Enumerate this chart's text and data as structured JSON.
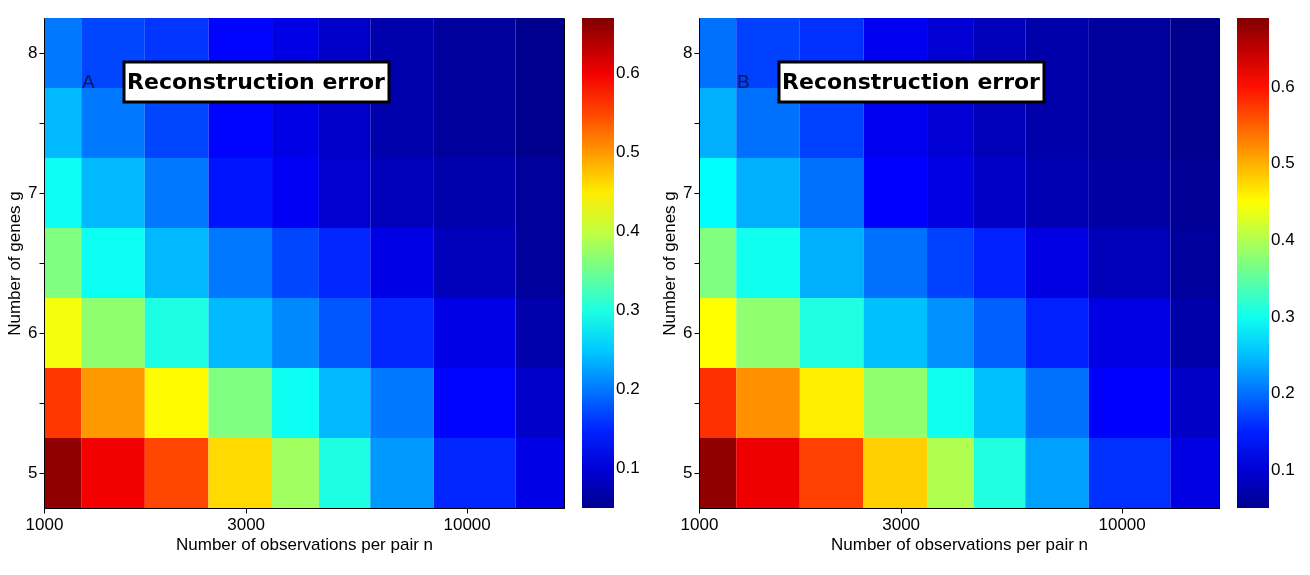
{
  "chart_data": [
    {
      "type": "heatmap",
      "title": "Reconstruction error",
      "annotations": [
        "A"
      ],
      "xlabel": "Number of observations per pair n",
      "ylabel": "Number of genes g",
      "log": "x",
      "x": [
        1000,
        1500,
        2000,
        3000,
        4000,
        5000,
        7000,
        10000,
        17000
      ],
      "xlim": [
        1000,
        17000
      ],
      "xticks": [
        1000,
        3000,
        10000
      ],
      "y_categories": [
        "8",
        null,
        "7",
        null,
        "6",
        null,
        "5"
      ],
      "clim": [
        0.05,
        0.67
      ],
      "cticks": [
        0.1,
        0.2,
        0.3,
        0.4,
        0.5,
        0.6
      ],
      "cells": [
        [
          0.2,
          0.17,
          0.16,
          0.13,
          0.11,
          0.09,
          0.07,
          0.06,
          0.05
        ],
        [
          0.24,
          0.2,
          0.17,
          0.13,
          0.11,
          0.09,
          0.07,
          0.06,
          0.05
        ],
        [
          0.29,
          0.24,
          0.2,
          0.14,
          0.12,
          0.095,
          0.08,
          0.07,
          0.06
        ],
        [
          0.36,
          0.29,
          0.24,
          0.2,
          0.17,
          0.15,
          0.11,
          0.08,
          0.06
        ],
        [
          0.43,
          0.37,
          0.3,
          0.24,
          0.21,
          0.18,
          0.15,
          0.11,
          0.07
        ],
        [
          0.56,
          0.5,
          0.44,
          0.36,
          0.29,
          0.24,
          0.2,
          0.13,
          0.09
        ],
        [
          0.66,
          0.6,
          0.55,
          0.46,
          0.38,
          0.3,
          0.22,
          0.15,
          0.11
        ]
      ]
    },
    {
      "type": "heatmap",
      "title": "Reconstruction error",
      "annotations": [
        "B"
      ],
      "xlabel": "Number of observations per pair n",
      "ylabel": "Number of genes g",
      "log": "x",
      "x": [
        1000,
        1500,
        2000,
        3000,
        4000,
        5000,
        7000,
        10000,
        17000
      ],
      "xlim": [
        1000,
        17000
      ],
      "xticks": [
        1000,
        3000,
        10000
      ],
      "y_categories": [
        "8",
        null,
        "7",
        null,
        "6",
        null,
        "5"
      ],
      "clim": [
        0.05,
        0.69
      ],
      "cticks": [
        0.1,
        0.2,
        0.3,
        0.4,
        0.5,
        0.6
      ],
      "cells": [
        [
          0.2,
          0.17,
          0.16,
          0.12,
          0.1,
          0.08,
          0.07,
          0.06,
          0.05
        ],
        [
          0.24,
          0.2,
          0.17,
          0.12,
          0.1,
          0.08,
          0.07,
          0.06,
          0.05
        ],
        [
          0.29,
          0.24,
          0.2,
          0.13,
          0.11,
          0.09,
          0.075,
          0.065,
          0.055
        ],
        [
          0.37,
          0.3,
          0.24,
          0.2,
          0.17,
          0.15,
          0.11,
          0.08,
          0.06
        ],
        [
          0.45,
          0.38,
          0.31,
          0.25,
          0.22,
          0.19,
          0.15,
          0.11,
          0.07
        ],
        [
          0.58,
          0.52,
          0.46,
          0.38,
          0.3,
          0.25,
          0.2,
          0.13,
          0.09
        ],
        [
          0.68,
          0.62,
          0.57,
          0.48,
          0.4,
          0.31,
          0.23,
          0.16,
          0.11
        ]
      ]
    }
  ]
}
